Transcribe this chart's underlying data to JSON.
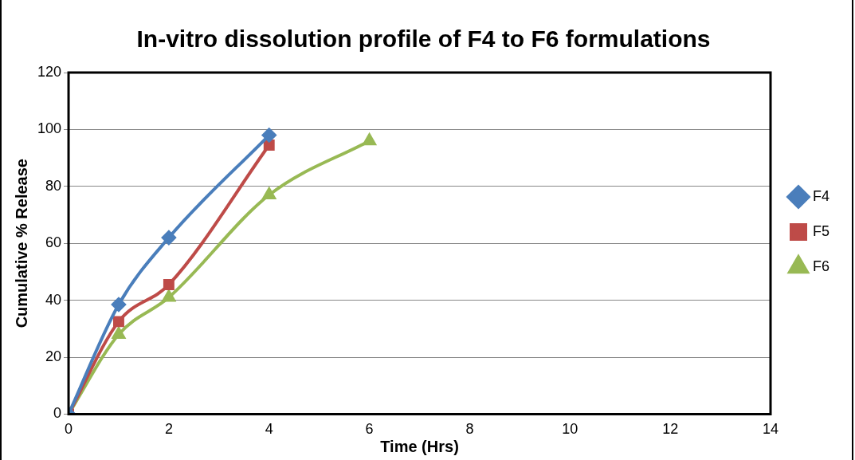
{
  "chart_data": {
    "type": "line",
    "title": "In-vitro dissolution profile of F4 to F6 formulations",
    "xlabel": "Time (Hrs)",
    "ylabel": "Cumulative % Release",
    "xlim": [
      0,
      14
    ],
    "xticks": [
      0,
      2,
      4,
      6,
      8,
      10,
      12,
      14
    ],
    "ylim": [
      0,
      120
    ],
    "yticks": [
      0,
      20,
      40,
      60,
      80,
      100,
      120
    ],
    "grid": "y",
    "legend": "right",
    "series": [
      {
        "name": "F4",
        "color": "#4a7ebb",
        "marker": "diamond",
        "x": [
          0,
          1,
          2,
          4
        ],
        "values": [
          0,
          38.5,
          62,
          98
        ]
      },
      {
        "name": "F5",
        "color": "#be4b48",
        "marker": "square",
        "x": [
          0,
          1,
          2,
          4
        ],
        "values": [
          0,
          32.5,
          45.5,
          94.5
        ]
      },
      {
        "name": "F6",
        "color": "#98b954",
        "marker": "triangle",
        "x": [
          0,
          1,
          2,
          4,
          6
        ],
        "values": [
          0,
          28,
          41,
          77,
          96
        ]
      }
    ]
  }
}
